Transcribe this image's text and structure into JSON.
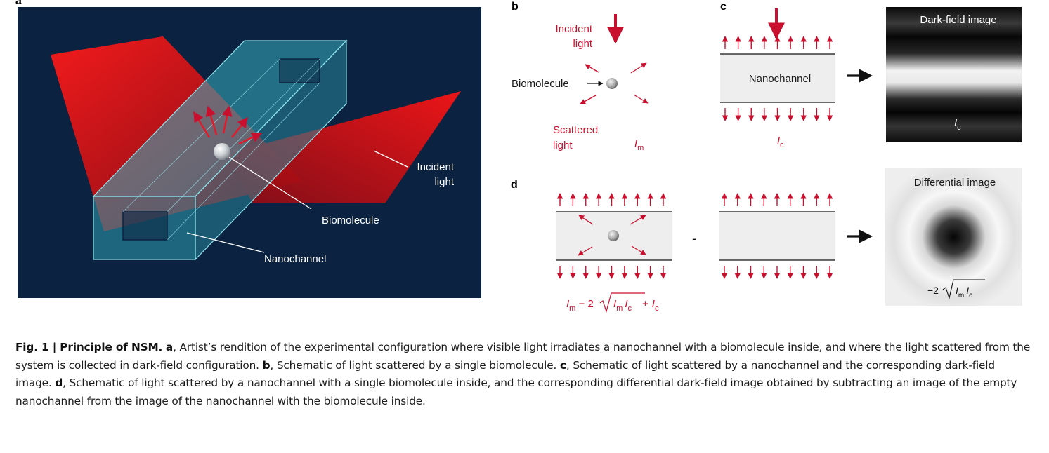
{
  "panels": {
    "a": {
      "label": "a",
      "incident_light": [
        "Incident",
        "light"
      ],
      "biomolecule": "Biomolecule",
      "nanochannel": "Nanochannel"
    },
    "b": {
      "label": "b",
      "incident_light": [
        "Incident",
        "light"
      ],
      "biomolecule": "Biomolecule",
      "scattered_light": [
        "Scattered",
        "light"
      ],
      "intensity": "I",
      "intensity_sub": "m"
    },
    "c": {
      "label": "c",
      "nanochannel": "Nanochannel",
      "intensity": "I",
      "intensity_sub": "c",
      "image_title": "Dark-field image",
      "image_intensity": "I",
      "image_intensity_sub": "c"
    },
    "d": {
      "label": "d",
      "minus": "-",
      "formula_left": "I",
      "formula_left_sub": "m",
      "formula_minus": " − 2",
      "formula_root_1": "I",
      "formula_root_1_sub": "m",
      "formula_root_2": "I",
      "formula_root_2_sub": "c",
      "formula_plus": "+",
      "formula_right": "I",
      "formula_right_sub": "c",
      "image_title": "Differential image",
      "image_formula_prefix": "−2",
      "image_root_1": "I",
      "image_root_1_sub": "m",
      "image_root_2": "I",
      "image_root_2_sub": "c"
    }
  },
  "caption": {
    "fig_label": "Fig. 1 | Principle of NSM.",
    "a_label": "a",
    "a_text": ", Artist’s rendition of the experimental configuration where visible light irradiates a nanochannel with a biomolecule inside, and where the light scattered from the system is collected in dark-field configuration. ",
    "b_label": "b",
    "b_text": ", Schematic of light scattered by a single biomolecule. ",
    "c_label": "c",
    "c_text": ", Schematic of light scattered by a nanochannel and the corresponding dark-field image. ",
    "d_label": "d",
    "d_text": ", Schematic of light scattered by a nanochannel with a single biomolecule inside, and the corresponding differential dark-field image obtained by subtracting an image of the empty nanochannel from the image of the nanochannel with the biomolecule inside."
  },
  "colors": {
    "panel_a_background": "#0b2340",
    "red_arrow": "#c8102e",
    "channel_fill": "#eeeeee",
    "channel_glass": "#3fb7c8"
  }
}
